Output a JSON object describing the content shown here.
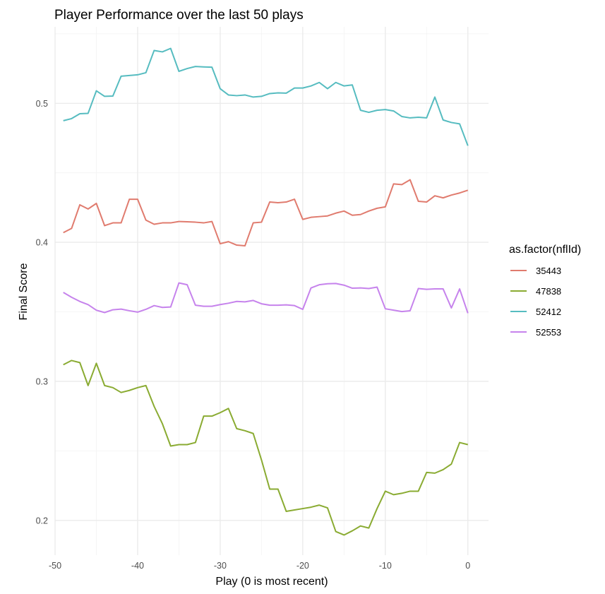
{
  "chart_data": {
    "type": "line",
    "title": "Player Performance over the last 50 plays",
    "xlabel": "Play (0 is most recent)",
    "ylabel": "Final Score",
    "xlim": [
      -50,
      2.5
    ],
    "ylim": [
      0.175,
      0.555
    ],
    "x_ticks": [
      -50,
      -40,
      -30,
      -20,
      -10,
      0
    ],
    "x_tick_labels": [
      "-50",
      "-40",
      "-30",
      "-20",
      "-10",
      "0"
    ],
    "y_ticks": [
      0.2,
      0.3,
      0.4,
      0.5
    ],
    "y_tick_labels": [
      "0.2",
      "0.3",
      "0.4",
      "0.5"
    ],
    "grid": true,
    "legend": {
      "title": "as.factor(nflId)",
      "placement": "right"
    },
    "x": [
      -49,
      -48,
      -47,
      -46,
      -45,
      -44,
      -43,
      -42,
      -41,
      -40,
      -39,
      -38,
      -37,
      -36,
      -35,
      -34,
      -33,
      -32,
      -31,
      -30,
      -29,
      -28,
      -27,
      -26,
      -25,
      -24,
      -23,
      -22,
      -21,
      -20,
      -19,
      -18,
      -17,
      -16,
      -15,
      -14,
      -13,
      -12,
      -11,
      -10,
      -9,
      -8,
      -7,
      -6,
      -5,
      -4,
      -3,
      -2,
      -1,
      0
    ],
    "series": [
      {
        "name": "35443",
        "color": "#e07b6e",
        "values": [
          0.407,
          0.41,
          0.427,
          0.424,
          0.428,
          0.412,
          0.414,
          0.414,
          0.431,
          0.431,
          0.416,
          0.413,
          0.414,
          0.414,
          0.415,
          0.4148,
          0.4145,
          0.414,
          0.415,
          0.399,
          0.4005,
          0.398,
          0.3975,
          0.414,
          0.4145,
          0.429,
          0.4285,
          0.429,
          0.431,
          0.4165,
          0.418,
          0.4185,
          0.419,
          0.421,
          0.4225,
          0.4195,
          0.42,
          0.4225,
          0.4245,
          0.4255,
          0.442,
          0.4415,
          0.445,
          0.4295,
          0.429,
          0.4335,
          0.432,
          0.434,
          0.4355,
          0.4375
        ]
      },
      {
        "name": "47838",
        "color": "#8aab32",
        "values": [
          0.312,
          0.315,
          0.3135,
          0.297,
          0.313,
          0.297,
          0.2955,
          0.292,
          0.2935,
          0.2955,
          0.297,
          0.282,
          0.2695,
          0.2535,
          0.2545,
          0.2545,
          0.256,
          0.275,
          0.275,
          0.2775,
          0.2805,
          0.266,
          0.2645,
          0.2625,
          0.2435,
          0.2225,
          0.2225,
          0.2065,
          0.2075,
          0.2085,
          0.2095,
          0.211,
          0.209,
          0.192,
          0.1895,
          0.1925,
          0.196,
          0.1945,
          0.2085,
          0.221,
          0.2185,
          0.2195,
          0.221,
          0.221,
          0.2345,
          0.234,
          0.2365,
          0.2405,
          0.256,
          0.2545
        ]
      },
      {
        "name": "52412",
        "color": "#56bcc0",
        "values": [
          0.4875,
          0.489,
          0.4925,
          0.4928,
          0.509,
          0.505,
          0.5052,
          0.5195,
          0.52,
          0.5205,
          0.522,
          0.538,
          0.537,
          0.5395,
          0.523,
          0.525,
          0.5265,
          0.5262,
          0.526,
          0.5105,
          0.506,
          0.5055,
          0.506,
          0.5045,
          0.505,
          0.507,
          0.5075,
          0.5073,
          0.511,
          0.511,
          0.5125,
          0.515,
          0.5105,
          0.515,
          0.5125,
          0.5132,
          0.495,
          0.4935,
          0.495,
          0.4955,
          0.4945,
          0.4905,
          0.4895,
          0.49,
          0.4895,
          0.5045,
          0.488,
          0.4862,
          0.4852,
          0.4695
        ]
      },
      {
        "name": "52553",
        "color": "#c683ec",
        "values": [
          0.364,
          0.3605,
          0.3575,
          0.3552,
          0.3512,
          0.3495,
          0.3515,
          0.352,
          0.3508,
          0.3498,
          0.3518,
          0.3545,
          0.3532,
          0.3535,
          0.3708,
          0.3695,
          0.3548,
          0.354,
          0.354,
          0.3552,
          0.3562,
          0.3575,
          0.3572,
          0.3582,
          0.3558,
          0.3548,
          0.3548,
          0.355,
          0.3545,
          0.3518,
          0.3672,
          0.3695,
          0.3702,
          0.3704,
          0.3692,
          0.367,
          0.3672,
          0.3668,
          0.3678,
          0.3522,
          0.3512,
          0.3502,
          0.3508,
          0.3668,
          0.3662,
          0.3665,
          0.3665,
          0.3528,
          0.3665,
          0.349
        ]
      }
    ]
  }
}
